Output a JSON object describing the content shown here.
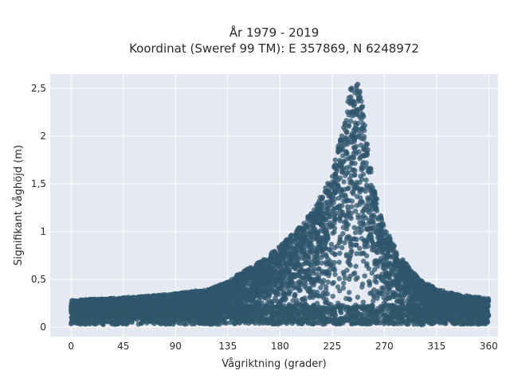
{
  "chart_data": {
    "type": "scatter",
    "title_lines": [
      "År 1979 - 2019",
      "Koordinat (Sweref 99 TM): E 357869, N 6248972"
    ],
    "xlabel": "Vågriktning (grader)",
    "ylabel": "Signifikant våghöjd (m)",
    "xlim": [
      -18,
      368
    ],
    "ylim": [
      -0.1,
      2.65
    ],
    "x_ticks": [
      0,
      45,
      90,
      135,
      180,
      225,
      270,
      315,
      360
    ],
    "x_tick_labels": [
      "0",
      "45",
      "90",
      "135",
      "180",
      "225",
      "270",
      "315",
      "360"
    ],
    "y_ticks": [
      0,
      0.5,
      1,
      1.5,
      2,
      2.5
    ],
    "y_tick_labels": [
      "0",
      "0,5",
      "1",
      "1,5",
      "2",
      "2,5"
    ],
    "grid": true,
    "legend": "none",
    "colors": {
      "marker": "#2f566c",
      "plot_bg": "#e5e9f2",
      "grid": "#ffffff"
    },
    "envelope": {
      "direction": [
        0,
        30,
        60,
        90,
        120,
        135,
        150,
        165,
        180,
        195,
        210,
        225,
        232,
        238,
        242,
        246,
        250,
        255,
        260,
        270,
        285,
        300,
        315,
        330,
        345,
        360
      ],
      "max_height": [
        0.28,
        0.3,
        0.32,
        0.35,
        0.4,
        0.48,
        0.6,
        0.7,
        0.85,
        1.02,
        1.25,
        1.6,
        2.0,
        2.35,
        2.55,
        2.6,
        2.45,
        2.0,
        1.5,
        1.05,
        0.72,
        0.5,
        0.4,
        0.35,
        0.32,
        0.3
      ]
    }
  }
}
